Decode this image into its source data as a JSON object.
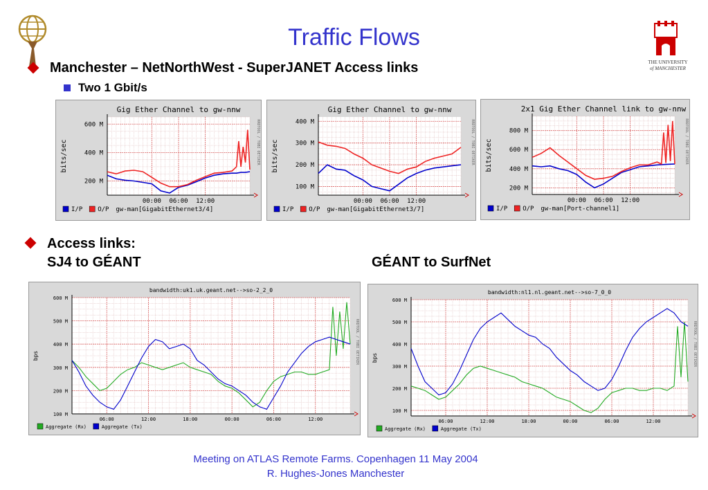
{
  "title": "Traffic Flows",
  "bullets": {
    "main1": "Manchester – NetNorthWest - SuperJANET Access links",
    "sub1": "Two 1 Gbit/s",
    "main2": "Access links:",
    "label_left": "SJ4 to GÉANT",
    "label_right": "GÉANT to SurfNet"
  },
  "logo_right": {
    "line1": "THE UNIVERSITY",
    "line2": "of MANCHESTER"
  },
  "footer": {
    "line1": "Meeting on ATLAS Remote Farms. Copenhagen 11 May 2004",
    "line2": "R. Hughes-Jones  Manchester"
  },
  "colors": {
    "accent": "#3333cc",
    "bullet": "#cc0000",
    "series_blue": "#0000cc",
    "series_red": "#ee2222",
    "series_green": "#22aa22"
  },
  "chart_data": [
    {
      "type": "line",
      "title": "Gig Ether Channel to gw-nnw",
      "ylabel": "bits/sec",
      "ylim": [
        100,
        650
      ],
      "yticks": [
        200,
        400,
        600
      ],
      "ytick_labels": [
        "200 M",
        "400 M",
        "600 M"
      ],
      "xticks": [
        0,
        6,
        12
      ],
      "xtick_labels": [
        "00:00",
        "06:00",
        "12:00"
      ],
      "xlim": [
        -10,
        22
      ],
      "side_text": "RRDTOOL / TOBI OETIKER",
      "legend": [
        {
          "name": "I/P",
          "color": "#0000cc"
        },
        {
          "name": "O/P",
          "color": "#ee2222"
        }
      ],
      "legend_note": "gw-man[GigabitEthernet3/4]",
      "series": [
        {
          "name": "I/P",
          "color": "#0000cc",
          "x": [
            -10,
            -8,
            -6,
            -4,
            -2,
            0,
            2,
            4,
            6,
            8,
            10,
            12,
            14,
            16,
            18,
            19,
            20,
            21,
            22
          ],
          "values": [
            240,
            215,
            205,
            200,
            190,
            180,
            130,
            115,
            155,
            170,
            195,
            220,
            240,
            250,
            255,
            255,
            260,
            260,
            265
          ]
        },
        {
          "name": "O/P",
          "color": "#ee2222",
          "x": [
            -10,
            -8,
            -6,
            -4,
            -2,
            0,
            2,
            4,
            6,
            8,
            10,
            12,
            14,
            16,
            18,
            19,
            19.5,
            20,
            20.5,
            21,
            21.5,
            22
          ],
          "values": [
            265,
            250,
            270,
            275,
            265,
            225,
            185,
            160,
            160,
            175,
            205,
            230,
            255,
            260,
            270,
            300,
            480,
            300,
            440,
            330,
            560,
            280
          ]
        }
      ]
    },
    {
      "type": "line",
      "title": "Gig Ether Channel to gw-nnw",
      "ylabel": "bits/sec",
      "ylim": [
        60,
        420
      ],
      "yticks": [
        100,
        200,
        300,
        400
      ],
      "ytick_labels": [
        "100 M",
        "200 M",
        "300 M",
        "400 M"
      ],
      "xticks": [
        0,
        6,
        12
      ],
      "xtick_labels": [
        "00:00",
        "06:00",
        "12:00"
      ],
      "xlim": [
        -10,
        22
      ],
      "side_text": "RRDTOOL / TOBI OETIKER",
      "legend": [
        {
          "name": "I/P",
          "color": "#0000cc"
        },
        {
          "name": "O/P",
          "color": "#ee2222"
        }
      ],
      "legend_note": "gw-man[GigabitEthernet3/7]",
      "series": [
        {
          "name": "I/P",
          "color": "#0000cc",
          "x": [
            -10,
            -8,
            -6,
            -4,
            -2,
            0,
            2,
            4,
            6,
            8,
            10,
            12,
            14,
            16,
            18,
            20,
            22
          ],
          "values": [
            160,
            200,
            180,
            175,
            150,
            130,
            100,
            90,
            80,
            110,
            140,
            160,
            175,
            185,
            190,
            195,
            200
          ]
        },
        {
          "name": "O/P",
          "color": "#ee2222",
          "x": [
            -10,
            -8,
            -6,
            -4,
            -2,
            0,
            2,
            4,
            6,
            8,
            10,
            12,
            14,
            16,
            18,
            20,
            22
          ],
          "values": [
            305,
            290,
            285,
            275,
            250,
            230,
            200,
            185,
            170,
            160,
            180,
            190,
            215,
            230,
            240,
            250,
            280
          ]
        }
      ]
    },
    {
      "type": "line",
      "title": "2x1 Gig Ether Channel link to gw-nnw",
      "ylabel": "bits/sec",
      "ylim": [
        130,
        950
      ],
      "yticks": [
        200,
        400,
        600,
        800
      ],
      "ytick_labels": [
        "200 M",
        "400 M",
        "600 M",
        "800 M"
      ],
      "xticks": [
        0,
        6,
        12
      ],
      "xtick_labels": [
        "00:00",
        "06:00",
        "12:00"
      ],
      "xlim": [
        -10,
        22
      ],
      "side_text": "RRDTOOL / TOBI OETIKER",
      "legend": [
        {
          "name": "I/P",
          "color": "#0000cc"
        },
        {
          "name": "O/P",
          "color": "#ee2222"
        }
      ],
      "legend_note": "gw-man[Port-channel1]",
      "series": [
        {
          "name": "I/P",
          "color": "#0000cc",
          "x": [
            -10,
            -8,
            -6,
            -4,
            -2,
            0,
            2,
            4,
            6,
            8,
            10,
            12,
            14,
            16,
            18,
            20,
            22
          ],
          "values": [
            430,
            420,
            430,
            400,
            380,
            340,
            260,
            200,
            240,
            300,
            360,
            390,
            420,
            430,
            440,
            445,
            450
          ]
        },
        {
          "name": "O/P",
          "color": "#ee2222",
          "x": [
            -10,
            -8,
            -6,
            -4,
            -2,
            0,
            2,
            4,
            6,
            8,
            10,
            12,
            14,
            16,
            18,
            19,
            19.5,
            20,
            20.5,
            21,
            21.5,
            22
          ],
          "values": [
            520,
            560,
            620,
            540,
            470,
            400,
            330,
            290,
            300,
            320,
            370,
            410,
            440,
            440,
            470,
            450,
            780,
            460,
            860,
            480,
            900,
            450
          ]
        }
      ]
    },
    {
      "type": "line",
      "title": "bandwidth:uk1.uk.geant.net-->so-2_2_0",
      "ylabel": "bps",
      "ylim": [
        100,
        600
      ],
      "yticks": [
        100,
        200,
        300,
        400,
        500,
        600
      ],
      "ytick_labels": [
        "100 M",
        "200 M",
        "300 M",
        "400 M",
        "500 M",
        "600 M"
      ],
      "xticks": [
        6,
        12,
        18,
        24,
        30,
        36
      ],
      "xtick_labels": [
        "06:00",
        "12:00",
        "18:00",
        "00:00",
        "06:00",
        "12:00"
      ],
      "xlim": [
        1,
        41
      ],
      "side_text": "RRDTOOL / TOBI OETIKER",
      "legend": [
        {
          "name": "Aggregate (Rx)",
          "color": "#22aa22"
        },
        {
          "name": "Aggregate (Tx)",
          "color": "#0000cc"
        }
      ],
      "series": [
        {
          "name": "Aggregate (Rx)",
          "color": "#22aa22",
          "x": [
            1,
            2,
            3,
            4,
            5,
            6,
            7,
            8,
            9,
            10,
            11,
            12,
            13,
            14,
            15,
            16,
            17,
            18,
            19,
            20,
            21,
            22,
            23,
            24,
            25,
            26,
            27,
            28,
            29,
            30,
            31,
            32,
            33,
            34,
            35,
            36,
            37,
            38,
            38.5,
            39,
            39.5,
            40,
            40.5,
            41
          ],
          "values": [
            330,
            300,
            260,
            230,
            200,
            210,
            240,
            270,
            290,
            300,
            320,
            310,
            300,
            290,
            300,
            310,
            320,
            300,
            290,
            280,
            270,
            240,
            220,
            210,
            190,
            160,
            130,
            150,
            200,
            240,
            260,
            270,
            280,
            280,
            270,
            270,
            280,
            290,
            560,
            350,
            540,
            380,
            580,
            400
          ]
        },
        {
          "name": "Aggregate (Tx)",
          "color": "#0000cc",
          "x": [
            1,
            2,
            3,
            4,
            5,
            6,
            7,
            8,
            9,
            10,
            11,
            12,
            13,
            14,
            15,
            16,
            17,
            18,
            19,
            20,
            21,
            22,
            23,
            24,
            25,
            26,
            27,
            28,
            29,
            30,
            31,
            32,
            33,
            34,
            35,
            36,
            37,
            38,
            39,
            40,
            41
          ],
          "values": [
            330,
            280,
            220,
            180,
            150,
            130,
            120,
            160,
            220,
            280,
            340,
            390,
            420,
            410,
            380,
            390,
            400,
            380,
            330,
            310,
            280,
            250,
            230,
            220,
            200,
            180,
            150,
            130,
            120,
            170,
            220,
            280,
            320,
            360,
            390,
            410,
            420,
            430,
            420,
            410,
            400
          ]
        }
      ]
    },
    {
      "type": "line",
      "title": "bandwidth:nl1.nl.geant.net-->so-7_0_0",
      "ylabel": "bps",
      "ylim": [
        75,
        600
      ],
      "yticks": [
        100,
        200,
        300,
        400,
        500,
        600
      ],
      "ytick_labels": [
        "100 M",
        "200 M",
        "300 M",
        "400 M",
        "500 M",
        "600 M"
      ],
      "xticks": [
        6,
        12,
        18,
        24,
        30,
        36
      ],
      "xtick_labels": [
        "06:00",
        "12:00",
        "18:00",
        "00:00",
        "06:00",
        "12:00"
      ],
      "xlim": [
        1,
        41
      ],
      "side_text": "RRDTOOL / TOBI OETIKER",
      "legend": [
        {
          "name": "Aggregate (Rx)",
          "color": "#22aa22"
        },
        {
          "name": "Aggregate (Tx)",
          "color": "#0000cc"
        }
      ],
      "series": [
        {
          "name": "Aggregate (Rx)",
          "color": "#22aa22",
          "x": [
            1,
            2,
            3,
            4,
            5,
            6,
            7,
            8,
            9,
            10,
            11,
            12,
            13,
            14,
            15,
            16,
            17,
            18,
            19,
            20,
            21,
            22,
            23,
            24,
            25,
            26,
            27,
            28,
            29,
            30,
            31,
            32,
            33,
            34,
            35,
            36,
            37,
            38,
            39,
            39.5,
            40,
            40.5,
            41
          ],
          "values": [
            210,
            200,
            190,
            170,
            150,
            160,
            190,
            220,
            260,
            290,
            300,
            290,
            280,
            270,
            260,
            250,
            230,
            220,
            210,
            200,
            180,
            160,
            150,
            140,
            120,
            100,
            90,
            110,
            150,
            180,
            190,
            200,
            200,
            190,
            190,
            200,
            200,
            190,
            210,
            480,
            250,
            500,
            230
          ]
        },
        {
          "name": "Aggregate (Tx)",
          "color": "#0000cc",
          "x": [
            1,
            2,
            3,
            4,
            5,
            6,
            7,
            8,
            9,
            10,
            11,
            12,
            13,
            14,
            15,
            16,
            17,
            18,
            19,
            20,
            21,
            22,
            23,
            24,
            25,
            26,
            27,
            28,
            29,
            30,
            31,
            32,
            33,
            34,
            35,
            36,
            37,
            38,
            39,
            40,
            41
          ],
          "values": [
            380,
            300,
            230,
            200,
            170,
            180,
            220,
            280,
            350,
            420,
            470,
            500,
            520,
            540,
            510,
            480,
            460,
            440,
            430,
            400,
            380,
            340,
            310,
            280,
            260,
            230,
            210,
            190,
            200,
            240,
            300,
            370,
            430,
            470,
            500,
            520,
            540,
            560,
            540,
            500,
            480
          ]
        }
      ]
    }
  ]
}
